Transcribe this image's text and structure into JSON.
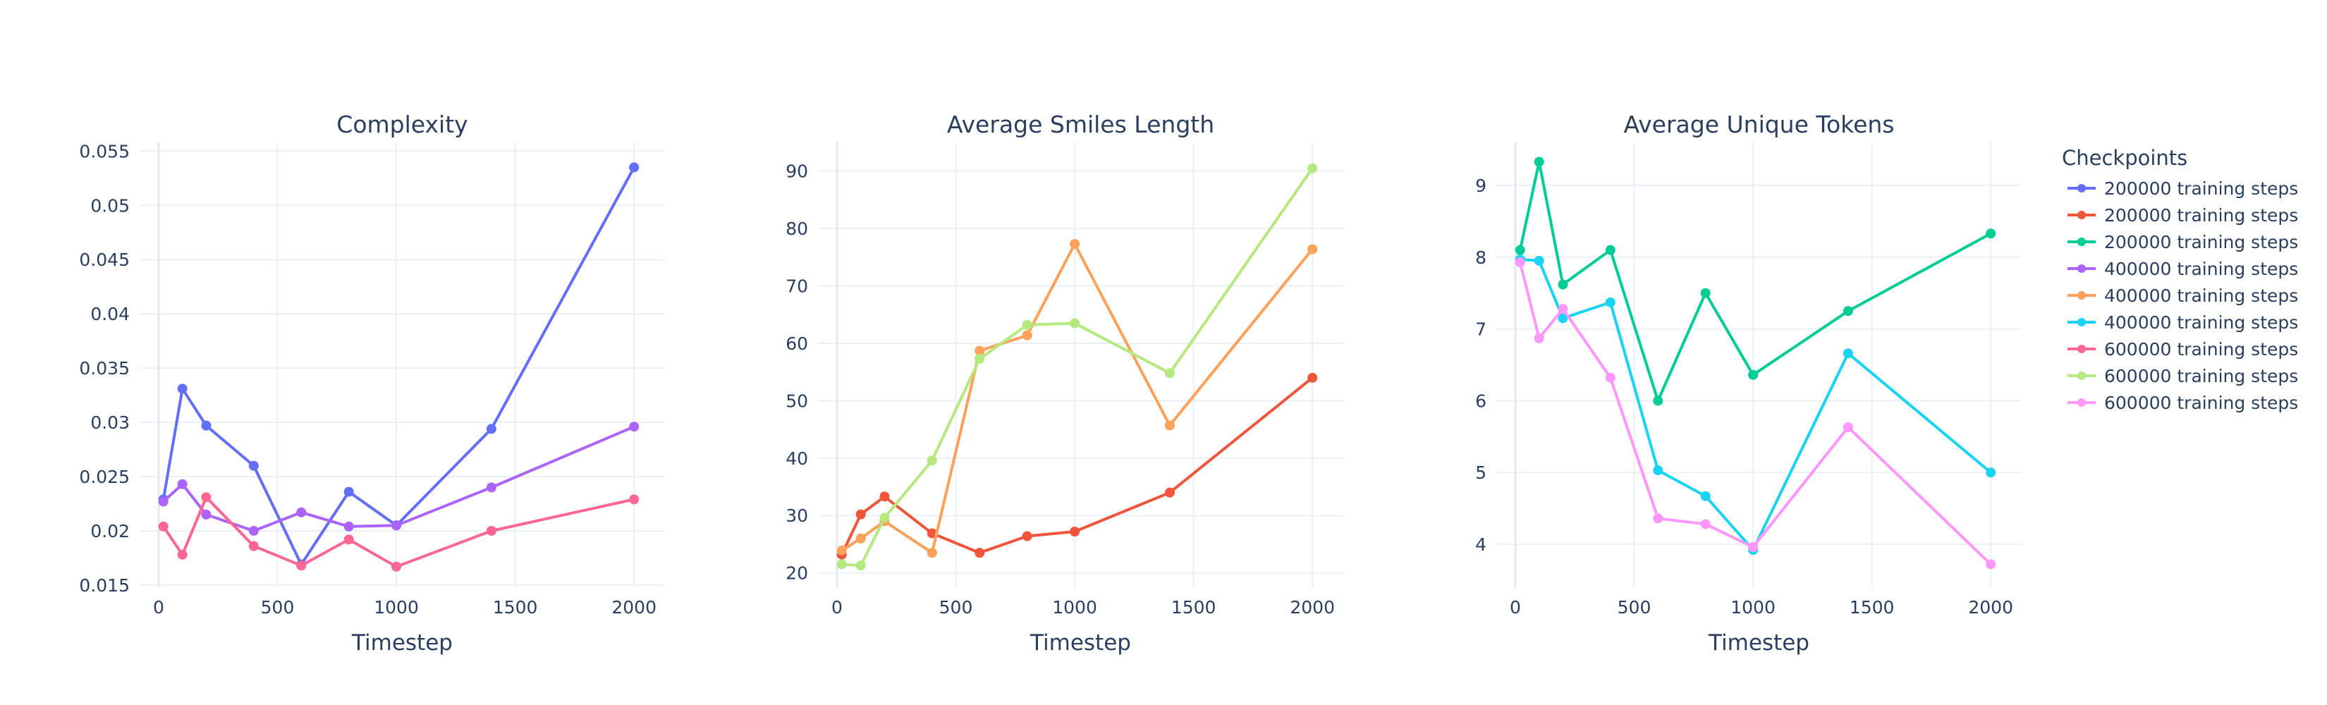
{
  "figure": {
    "legend_title": "Checkpoints",
    "legend_placement": "right",
    "grid": true,
    "background": "#ffffff"
  },
  "legend_entries": [
    {
      "label": "200000 training steps",
      "color": "#636efa"
    },
    {
      "label": "200000 training steps",
      "color": "#ef553b"
    },
    {
      "label": "200000 training steps",
      "color": "#00cc96"
    },
    {
      "label": "400000 training steps",
      "color": "#ab63fa"
    },
    {
      "label": "400000 training steps",
      "color": "#ffa15a"
    },
    {
      "label": "400000 training steps",
      "color": "#19d3f3"
    },
    {
      "label": "600000 training steps",
      "color": "#ff6692"
    },
    {
      "label": "600000 training steps",
      "color": "#b6e880"
    },
    {
      "label": "600000 training steps",
      "color": "#ff97ff"
    }
  ],
  "chart_data": [
    {
      "type": "line",
      "title": "Complexity",
      "xlabel": "Timestep",
      "ylabel": "",
      "xlim": [
        -80,
        2130
      ],
      "ylim": [
        0.0148,
        0.0558
      ],
      "xticks": [
        0,
        500,
        1000,
        1500,
        2000
      ],
      "xtick_labels": [
        "0",
        "500",
        "1000",
        "1500",
        "2000"
      ],
      "yticks": [
        0.015,
        0.02,
        0.025,
        0.03,
        0.035,
        0.04,
        0.045,
        0.05,
        0.055
      ],
      "ytick_labels": [
        "0.015",
        "0.02",
        "0.025",
        "0.03",
        "0.035",
        "0.04",
        "0.045",
        "0.05",
        "0.055"
      ],
      "x": [
        20,
        100,
        200,
        400,
        600,
        800,
        1000,
        1400,
        2000
      ],
      "series": [
        {
          "name": "200000 training steps",
          "color": "#636efa",
          "values": [
            0.0229,
            0.0331,
            0.0297,
            0.026,
            0.0169,
            0.0236,
            0.0205,
            0.0294,
            0.0535
          ]
        },
        {
          "name": "400000 training steps",
          "color": "#ab63fa",
          "values": [
            0.0227,
            0.0243,
            0.0215,
            0.02,
            0.0217,
            0.0204,
            0.0205,
            0.024,
            0.0296
          ]
        },
        {
          "name": "600000 training steps",
          "color": "#ff6692",
          "values": [
            0.0204,
            0.0178,
            0.0231,
            0.0186,
            0.0168,
            0.0192,
            0.0167,
            0.02,
            0.0229
          ]
        }
      ]
    },
    {
      "type": "line",
      "title": "Average Smiles Length",
      "xlabel": "Timestep",
      "ylabel": "",
      "xlim": [
        -80,
        2130
      ],
      "ylim": [
        17.5,
        95
      ],
      "xticks": [
        0,
        500,
        1000,
        1500,
        2000
      ],
      "xtick_labels": [
        "0",
        "500",
        "1000",
        "1500",
        "2000"
      ],
      "yticks": [
        20,
        30,
        40,
        50,
        60,
        70,
        80,
        90
      ],
      "ytick_labels": [
        "20",
        "30",
        "40",
        "50",
        "60",
        "70",
        "80",
        "90"
      ],
      "x": [
        20,
        100,
        200,
        400,
        600,
        800,
        1000,
        1400,
        2000
      ],
      "series": [
        {
          "name": "200000 training steps",
          "color": "#ef553b",
          "values": [
            23.2,
            30.2,
            33.3,
            26.9,
            23.5,
            26.4,
            27.2,
            34.0,
            54.0
          ]
        },
        {
          "name": "400000 training steps",
          "color": "#ffa15a",
          "values": [
            23.9,
            26.0,
            29.0,
            23.5,
            58.7,
            61.4,
            77.3,
            45.7,
            76.4
          ]
        },
        {
          "name": "600000 training steps",
          "color": "#b6e880",
          "values": [
            21.5,
            21.3,
            29.6,
            39.6,
            57.3,
            63.2,
            63.5,
            54.8,
            90.5
          ]
        }
      ]
    },
    {
      "type": "line",
      "title": "Average Unique Tokens",
      "xlabel": "Timestep",
      "ylabel": "",
      "xlim": [
        -80,
        2130
      ],
      "ylim": [
        3.4,
        9.6
      ],
      "xticks": [
        0,
        500,
        1000,
        1500,
        2000
      ],
      "xtick_labels": [
        "0",
        "500",
        "1000",
        "1500",
        "2000"
      ],
      "yticks": [
        4,
        5,
        6,
        7,
        8,
        9
      ],
      "ytick_labels": [
        "4",
        "5",
        "6",
        "7",
        "8",
        "9"
      ],
      "x": [
        20,
        100,
        200,
        400,
        600,
        800,
        1000,
        1400,
        2000
      ],
      "series": [
        {
          "name": "200000 training steps",
          "color": "#00cc96",
          "values": [
            8.1,
            9.33,
            7.62,
            8.1,
            6.0,
            7.5,
            6.36,
            7.25,
            8.33
          ]
        },
        {
          "name": "400000 training steps",
          "color": "#19d3f3",
          "values": [
            7.97,
            7.95,
            7.15,
            7.37,
            5.03,
            4.67,
            3.92,
            6.66,
            5.0
          ]
        },
        {
          "name": "600000 training steps",
          "color": "#ff97ff",
          "values": [
            7.93,
            6.87,
            7.28,
            6.32,
            4.36,
            4.28,
            3.96,
            5.63,
            3.72
          ]
        }
      ]
    }
  ]
}
